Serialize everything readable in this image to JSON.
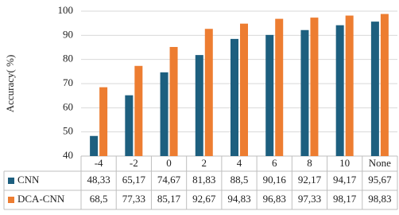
{
  "chart_data": {
    "type": "bar",
    "y_label": "Accuracy( %)",
    "categories": [
      "-4",
      "-2",
      "0",
      "2",
      "4",
      "6",
      "8",
      "10",
      "None"
    ],
    "series": [
      {
        "name": "CNN",
        "color": "#1d5f7f",
        "values": [
          48.33,
          65.17,
          74.67,
          81.83,
          88.5,
          90.16,
          92.17,
          94.17,
          95.67
        ],
        "value_labels": [
          "48,33",
          "65,17",
          "74,67",
          "81,83",
          "88,5",
          "90,16",
          "92,17",
          "94,17",
          "95,67"
        ]
      },
      {
        "name": "DCA-CNN",
        "color": "#ed7d31",
        "values": [
          68.5,
          77.33,
          85.17,
          92.67,
          94.83,
          96.83,
          97.33,
          98.17,
          98.83
        ],
        "value_labels": [
          "68,5",
          "77,33",
          "85,17",
          "92,67",
          "94,83",
          "96,83",
          "97,33",
          "98,17",
          "98,83"
        ]
      }
    ],
    "ylim": [
      40,
      100
    ],
    "yticks": [
      40,
      50,
      60,
      70,
      80,
      90,
      100
    ],
    "grid": true
  }
}
